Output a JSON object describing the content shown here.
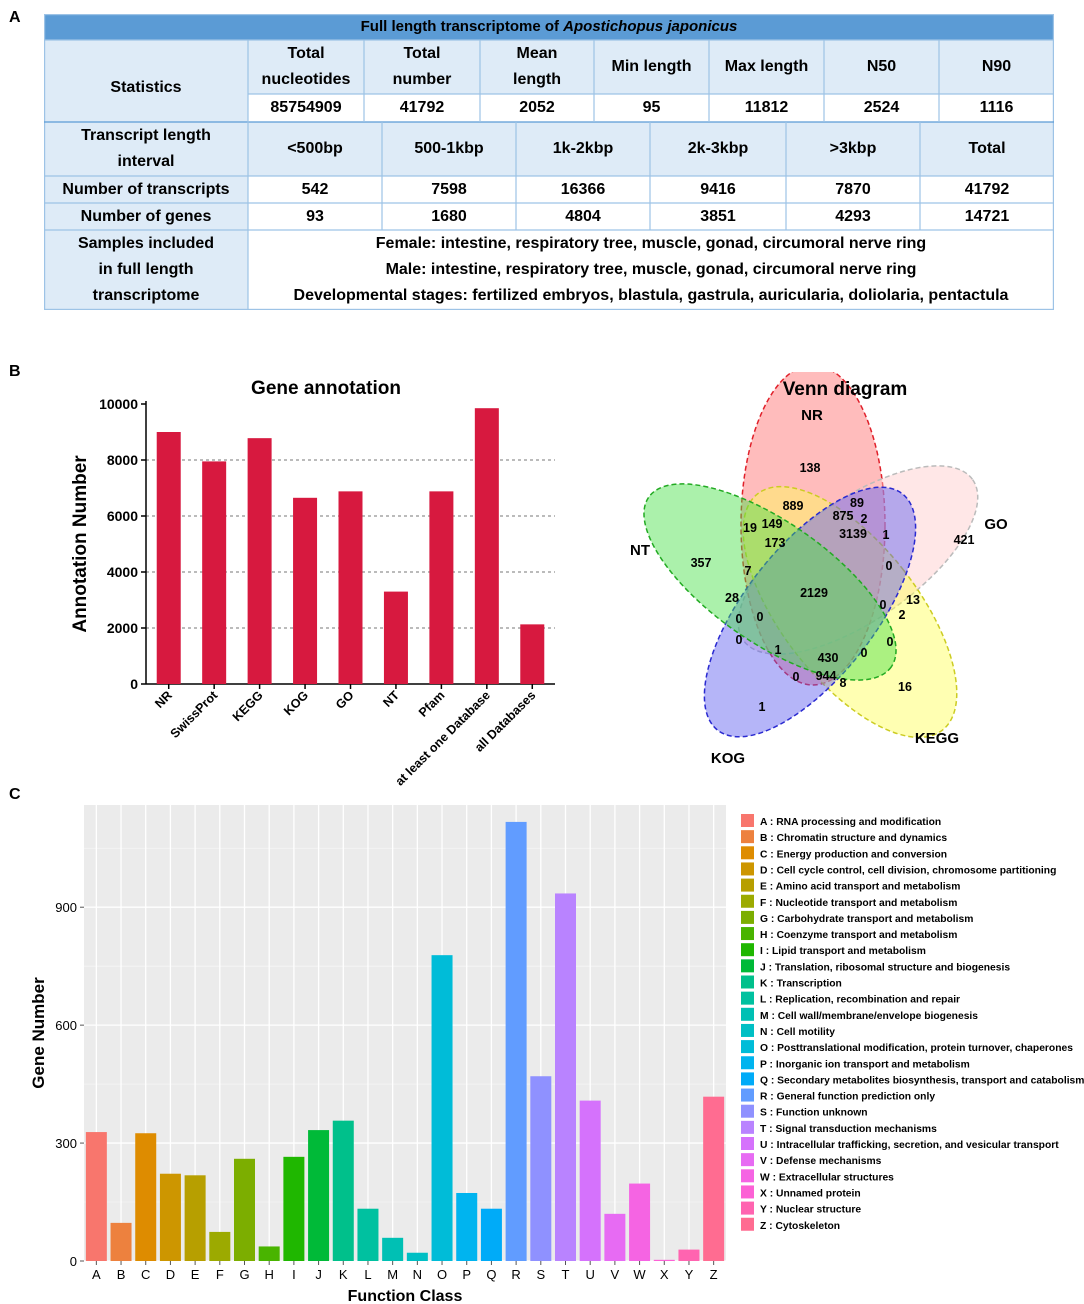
{
  "panel_labels": {
    "a": "A",
    "b": "B",
    "c": "C"
  },
  "colors": {
    "table_header": "#5b9bd5",
    "table_label": "#deebf7",
    "bar_b": "#d7193f",
    "venn": {
      "NR": "#ff6b6b",
      "GO": "#ffc9c9",
      "NT": "#44e044",
      "KEGG": "#ffff55",
      "KOG": "#5a5af0"
    }
  },
  "table": {
    "title_prefix": "Full length transcriptome of ",
    "title_species": "Apostichopus japonicus",
    "stats_label": "Statistics",
    "stats_headers": [
      {
        "line1": "Total",
        "line2": "nucleotides"
      },
      {
        "line1": "Total",
        "line2": "number"
      },
      {
        "line1": "Mean",
        "line2": "length"
      },
      {
        "line1": "Min length",
        "line2": ""
      },
      {
        "line1": "Max length",
        "line2": ""
      },
      {
        "line1": "N50",
        "line2": ""
      },
      {
        "line1": "N90",
        "line2": ""
      }
    ],
    "stats_values": [
      "85754909",
      "41792",
      "2052",
      "95",
      "11812",
      "2524",
      "1116"
    ],
    "interval_label": {
      "line1": "Transcript length",
      "line2": "interval"
    },
    "interval_headers": [
      "<500bp",
      "500-1kbp",
      "1k-2kbp",
      "2k-3kbp",
      ">3kbp",
      "Total"
    ],
    "transcripts_label": "Number of transcripts",
    "transcripts": [
      "542",
      "7598",
      "16366",
      "9416",
      "7870",
      "41792"
    ],
    "genes_label": "Number of genes",
    "genes": [
      "93",
      "1680",
      "4804",
      "3851",
      "4293",
      "14721"
    ],
    "samples_label": {
      "line1": "Samples included",
      "line2": "in full length",
      "line3": "transcriptome"
    },
    "samples": [
      "Female: intestine, respiratory tree, muscle, gonad, circumoral nerve ring",
      "Male: intestine, respiratory tree, muscle, gonad, circumoral nerve ring",
      "Developmental stages: fertilized embryos, blastula, gastrula, auricularia, doliolaria, pentactula"
    ]
  },
  "venn": {
    "title": "Venn diagram",
    "sets": [
      "NR",
      "GO",
      "KEGG",
      "KOG",
      "NT"
    ],
    "region_counts": [
      "138",
      "889",
      "89",
      "875",
      "2",
      "1",
      "421",
      "19",
      "149",
      "3139",
      "173",
      "357",
      "7",
      "0",
      "2129",
      "28",
      "0",
      "0",
      "13",
      "0",
      "2",
      "0",
      "0",
      "1",
      "430",
      "0",
      "0",
      "944",
      "8",
      "16",
      "1"
    ]
  },
  "chart_data": [
    {
      "type": "bar",
      "title": "Gene annotation",
      "xlabel": "",
      "ylabel": "Annotation Number",
      "ylim": [
        0,
        10000
      ],
      "yticks": [
        "0",
        "2000",
        "4000",
        "6000",
        "8000",
        "10000"
      ],
      "grid": "dashed horizontal",
      "categories": [
        "NR",
        "SwissProt",
        "KEGG",
        "KOG",
        "GO",
        "NT",
        "Pfam",
        "at least one Database",
        "all Databases"
      ],
      "values": [
        9000,
        7950,
        8780,
        6650,
        6880,
        3300,
        6880,
        9850,
        2130
      ]
    },
    {
      "type": "bar",
      "title": "",
      "xlabel": "Function Class",
      "ylabel": "Gene Number",
      "ylim": [
        0,
        1160
      ],
      "yticks": [
        "0",
        "300",
        "600",
        "900"
      ],
      "grid": "on",
      "legend": "right",
      "categories": [
        "A",
        "B",
        "C",
        "D",
        "E",
        "F",
        "G",
        "H",
        "I",
        "J",
        "K",
        "L",
        "M",
        "N",
        "O",
        "P",
        "Q",
        "R",
        "S",
        "T",
        "U",
        "V",
        "W",
        "X",
        "Y",
        "Z"
      ],
      "values": [
        328,
        97,
        325,
        222,
        218,
        74,
        260,
        37,
        265,
        333,
        357,
        133,
        59,
        21,
        778,
        173,
        133,
        1117,
        470,
        935,
        408,
        120,
        197,
        3,
        29,
        418
      ],
      "colors": [
        "#f8766d",
        "#ed813e",
        "#de8c00",
        "#cd9600",
        "#b79f00",
        "#9caa00",
        "#7cae00",
        "#49b400",
        "#1fb700",
        "#00ba38",
        "#00c08b",
        "#00c1a0",
        "#00c0b4",
        "#00bfc4",
        "#00bcd8",
        "#00b4ef",
        "#00abf8",
        "#619cff",
        "#8f91ff",
        "#b983ff",
        "#d572fc",
        "#e76bf3",
        "#f564e3",
        "#fc61d5",
        "#ff64b0",
        "#ff6c91"
      ],
      "legend_labels": [
        "A : RNA processing and modification",
        "B : Chromatin structure and dynamics",
        "C : Energy production and conversion",
        "D : Cell cycle control, cell division, chromosome partitioning",
        "E : Amino acid transport and metabolism",
        "F : Nucleotide transport and metabolism",
        "G : Carbohydrate transport and metabolism",
        "H : Coenzyme transport and metabolism",
        "I : Lipid transport and metabolism",
        "J : Translation, ribosomal structure and biogenesis",
        "K : Transcription",
        "L : Replication, recombination and repair",
        "M : Cell wall/membrane/envelope biogenesis",
        "N : Cell motility",
        "O : Posttranslational modification, protein turnover, chaperones",
        "P : Inorganic ion transport and metabolism",
        "Q : Secondary metabolites biosynthesis, transport and catabolism",
        "R : General function prediction only",
        "S : Function unknown",
        "T : Signal transduction mechanisms",
        "U : Intracellular trafficking, secretion, and vesicular transport",
        "V : Defense mechanisms",
        "W : Extracellular structures",
        "X : Unnamed protein",
        "Y : Nuclear structure",
        "Z : Cytoskeleton"
      ]
    }
  ]
}
